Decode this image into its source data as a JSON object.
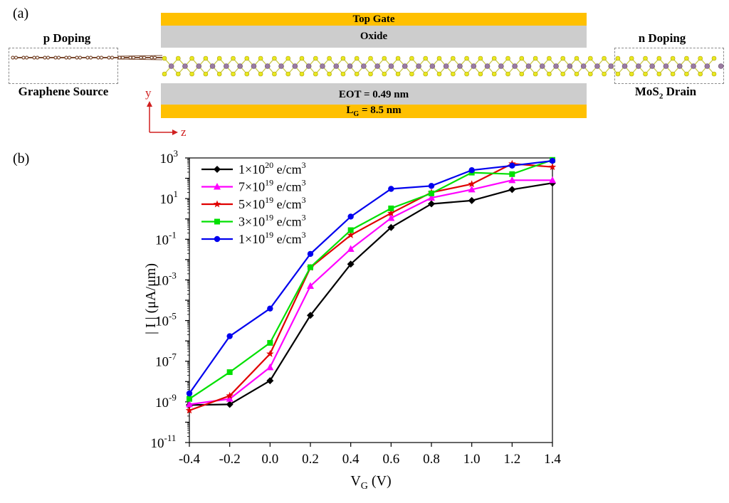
{
  "panel_a": {
    "label": "(a)",
    "top_gate_label": "Top Gate",
    "oxide_top_label": "Oxide",
    "eot_label": "EOT = 0.49 nm",
    "lg_label_main": "L",
    "lg_label_sub": "G",
    "lg_label_rest": " = 8.5 nm",
    "p_doping_label": "p Doping",
    "source_label": "Graphene Source",
    "n_doping_label": "n Doping",
    "drain_label_main": "MoS",
    "drain_label_sub": "2",
    "drain_label_rest": " Drain",
    "axis_y_label": "y",
    "axis_z_label": "z",
    "colors": {
      "gate": "#FFC000",
      "oxide": "#CDCDCD",
      "sulfur": "#E8E820",
      "molybdenum": "#9A7AA0",
      "carbon": "#7A4A30",
      "axes": "#D02020"
    }
  },
  "panel_b": {
    "label": "(b)"
  },
  "chart_data": {
    "type": "line",
    "title": "",
    "xlabel_main": "V",
    "xlabel_sub": "G",
    "xlabel_rest": " (V)",
    "ylabel": "| I | (μA/μm)",
    "yscale": "log",
    "xlim": [
      -0.4,
      1.4
    ],
    "ylim_log10": [
      -11,
      3
    ],
    "x_ticks": [
      "-0.4",
      "-0.2",
      "0.0",
      "0.2",
      "0.4",
      "0.6",
      "0.8",
      "1.0",
      "1.2",
      "1.4"
    ],
    "y_ticks": [
      {
        "base": "10",
        "exp": "3"
      },
      {
        "base": "10",
        "exp": "1"
      },
      {
        "base": "10",
        "exp": "-1"
      },
      {
        "base": "10",
        "exp": "-3"
      },
      {
        "base": "10",
        "exp": "-5"
      },
      {
        "base": "10",
        "exp": "-7"
      },
      {
        "base": "10",
        "exp": "-9"
      },
      {
        "base": "10",
        "exp": "-11"
      }
    ],
    "legend_position": "top-left",
    "grid": false,
    "x": [
      -0.4,
      -0.2,
      0.0,
      0.2,
      0.4,
      0.6,
      0.8,
      1.0,
      1.2,
      1.4
    ],
    "series": [
      {
        "name_pre": "1×10",
        "name_exp": "20",
        "name_post": " e/cm",
        "name_unit_exp": "3",
        "color": "#000000",
        "marker": "diamond",
        "values": [
          7e-10,
          7.5e-10,
          1.1e-08,
          1.8e-05,
          0.006,
          0.38,
          5.5,
          8,
          28,
          58
        ]
      },
      {
        "name_pre": "7×10",
        "name_exp": "19",
        "name_post": " e/cm",
        "name_unit_exp": "3",
        "color": "#FF00FF",
        "marker": "triangle",
        "values": [
          7.5e-10,
          1.4e-09,
          5e-08,
          0.0005,
          0.033,
          1.1,
          11,
          28,
          80,
          80
        ]
      },
      {
        "name_pre": "5×10",
        "name_exp": "19",
        "name_post": " e/cm",
        "name_unit_exp": "3",
        "color": "#E00000",
        "marker": "star",
        "values": [
          3.8e-10,
          2e-09,
          2.3e-07,
          0.004,
          0.16,
          1.9,
          20,
          52,
          520,
          360
        ]
      },
      {
        "name_pre": "3×10",
        "name_exp": "19",
        "name_post": " e/cm",
        "name_unit_exp": "3",
        "color": "#00E000",
        "marker": "square",
        "values": [
          1.4e-09,
          2.9e-08,
          8e-07,
          0.0042,
          0.28,
          3.3,
          18,
          190,
          160,
          800
        ]
      },
      {
        "name_pre": "1×10",
        "name_exp": "19",
        "name_post": " e/cm",
        "name_unit_exp": "3",
        "color": "#0000EE",
        "marker": "circle",
        "values": [
          2.6e-09,
          1.7e-06,
          3.9e-05,
          0.019,
          1.3,
          30,
          42,
          250,
          420,
          720
        ]
      }
    ]
  }
}
